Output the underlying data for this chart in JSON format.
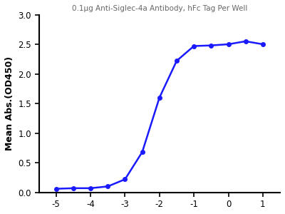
{
  "title": "0.1μg Anti-Siglec-4a Antibody, hFc Tag Per Well",
  "xlabel": "",
  "ylabel": "Mean Abs.(OD450)",
  "xlim": [
    -5.5,
    1.5
  ],
  "ylim": [
    0,
    3.0
  ],
  "xticks": [
    -5,
    -4,
    -3,
    -2,
    -1,
    0,
    1
  ],
  "yticks": [
    0.0,
    0.5,
    1.0,
    1.5,
    2.0,
    2.5,
    3.0
  ],
  "data_x": [
    -5,
    -4.5,
    -4,
    -3.5,
    -3,
    -2.5,
    -2,
    -1.5,
    -1,
    -0.5,
    0,
    0.5,
    1
  ],
  "data_y": [
    0.06,
    0.07,
    0.07,
    0.1,
    0.22,
    0.68,
    1.6,
    2.22,
    2.47,
    2.48,
    2.5,
    2.55,
    2.5
  ],
  "line_color": "#1a1aff",
  "dot_color": "#1a1aff",
  "title_fontsize": 7.5,
  "label_fontsize": 9,
  "tick_fontsize": 8.5,
  "background_color": "#ffffff",
  "fig_width": 4.0,
  "fig_height": 3.0
}
